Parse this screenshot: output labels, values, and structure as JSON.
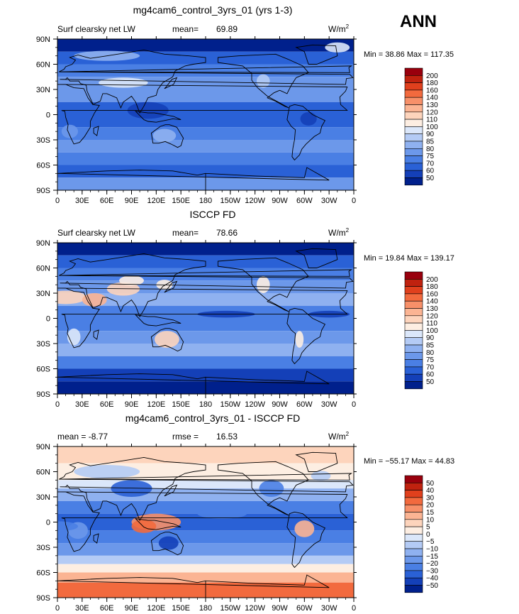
{
  "season": "ANN",
  "chart_data": [
    {
      "type": "heatmap",
      "title": "mg4cam6_control_3yrs_01 (yrs 1-3)",
      "left_label": "Surf clearsky net LW",
      "stat_label": "mean=",
      "stat_value": "69.89",
      "units_base": "W/m",
      "units_exp": "2",
      "minmax": "Min =  38.86 Max = 117.35",
      "xticks": [
        "0",
        "30E",
        "60E",
        "90E",
        "120E",
        "150E",
        "180",
        "150W",
        "120W",
        "90W",
        "60W",
        "30W",
        "0"
      ],
      "yticks": [
        "90N",
        "60N",
        "30N",
        "0",
        "30S",
        "60S",
        "90S"
      ],
      "colorbar": {
        "labels": [
          "200",
          "180",
          "160",
          "140",
          "130",
          "120",
          "110",
          "100",
          "90",
          "85",
          "80",
          "75",
          "70",
          "60",
          "50"
        ],
        "colors": [
          "#99000d",
          "#c0220f",
          "#e0401d",
          "#f26a3e",
          "#f79069",
          "#fbb493",
          "#fdd4bc",
          "#fdeee2",
          "#dbe7fa",
          "#b4cbf5",
          "#8fb1f0",
          "#6c98ea",
          "#4a7fe4",
          "#2a61d6",
          "#1440b8",
          "#00208c"
        ]
      }
    },
    {
      "type": "heatmap",
      "title": "ISCCP FD",
      "left_label": "Surf clearsky net LW",
      "stat_label": "mean=",
      "stat_value": "78.66",
      "units_base": "W/m",
      "units_exp": "2",
      "minmax": "Min =  19.84 Max = 139.17",
      "xticks": [
        "0",
        "30E",
        "60E",
        "90E",
        "120E",
        "150E",
        "180",
        "150W",
        "120W",
        "90W",
        "60W",
        "30W",
        "0"
      ],
      "yticks": [
        "90N",
        "60N",
        "30N",
        "0",
        "30S",
        "60S",
        "90S"
      ],
      "colorbar": {
        "labels": [
          "200",
          "180",
          "160",
          "140",
          "130",
          "120",
          "110",
          "100",
          "90",
          "85",
          "80",
          "75",
          "70",
          "60",
          "50"
        ],
        "colors": [
          "#99000d",
          "#c0220f",
          "#e0401d",
          "#f26a3e",
          "#f79069",
          "#fbb493",
          "#fdd4bc",
          "#fdeee2",
          "#dbe7fa",
          "#b4cbf5",
          "#8fb1f0",
          "#6c98ea",
          "#4a7fe4",
          "#2a61d6",
          "#1440b8",
          "#00208c"
        ]
      }
    },
    {
      "type": "heatmap",
      "title": "mg4cam6_control_3yrs_01 - ISCCP FD",
      "left_label": "mean =   -8.77",
      "stat_label": "rmse =",
      "stat_value": "16.53",
      "units_base": "W/m",
      "units_exp": "2",
      "minmax": "Min = −55.17 Max =  44.83",
      "xticks": [
        "0",
        "30E",
        "60E",
        "90E",
        "120E",
        "150E",
        "180",
        "150W",
        "120W",
        "90W",
        "60W",
        "30W",
        "0"
      ],
      "yticks": [
        "90N",
        "60N",
        "30N",
        "0",
        "30S",
        "60S",
        "90S"
      ],
      "colorbar": {
        "labels": [
          "50",
          "40",
          "30",
          "20",
          "15",
          "10",
          "5",
          "0",
          "−5",
          "−10",
          "−15",
          "−20",
          "−30",
          "−40",
          "−50"
        ],
        "colors": [
          "#99000d",
          "#c0220f",
          "#e0401d",
          "#f26a3e",
          "#f79069",
          "#fbb493",
          "#fdd4bc",
          "#fdeee2",
          "#dbe7fa",
          "#b4cbf5",
          "#8fb1f0",
          "#6c98ea",
          "#4a7fe4",
          "#2a61d6",
          "#1440b8",
          "#00208c"
        ]
      }
    }
  ]
}
